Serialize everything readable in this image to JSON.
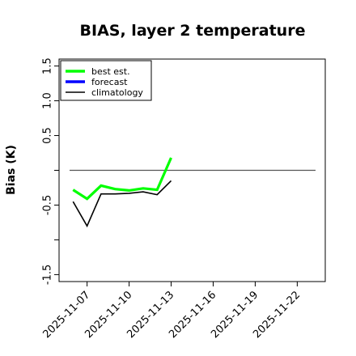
{
  "chart_data": {
    "type": "line",
    "title": "BIAS, layer 2 temperature",
    "xlabel": "",
    "ylabel": "Bias (K)",
    "ylim": [
      -1.6,
      1.6
    ],
    "xlim": [
      "2025-11-05",
      "2025-11-24"
    ],
    "yticks": [
      -1.5,
      -1.0,
      -0.5,
      0.0,
      0.5,
      1.0,
      1.5
    ],
    "ytick_labels": [
      "-1.5",
      "",
      "-0.5",
      "",
      "0.5",
      "1.0",
      "1.5"
    ],
    "xticks": [
      "2025-11-07",
      "2025-11-10",
      "2025-11-13",
      "2025-11-16",
      "2025-11-19",
      "2025-11-22"
    ],
    "highlight_xtick": "2025-11-13",
    "highlight_color": "#228b22",
    "reference_line": 0.0,
    "legend_position": "top-left",
    "grid": false,
    "series": [
      {
        "name": "best est.",
        "color": "#00ff00",
        "x": [
          "2025-11-06",
          "2025-11-07",
          "2025-11-08",
          "2025-11-09",
          "2025-11-10",
          "2025-11-11",
          "2025-11-12",
          "2025-11-13"
        ],
        "values": [
          -0.28,
          -0.41,
          -0.22,
          -0.27,
          -0.29,
          -0.26,
          -0.28,
          0.18
        ]
      },
      {
        "name": "forecast",
        "color": "#0000ff",
        "x": [],
        "values": []
      },
      {
        "name": "climatology",
        "color": "#000000",
        "x": [
          "2025-11-06",
          "2025-11-07",
          "2025-11-08",
          "2025-11-09",
          "2025-11-10",
          "2025-11-11",
          "2025-11-12",
          "2025-11-13"
        ],
        "values": [
          -0.45,
          -0.8,
          -0.34,
          -0.34,
          -0.33,
          -0.31,
          -0.35,
          -0.15
        ]
      }
    ]
  }
}
